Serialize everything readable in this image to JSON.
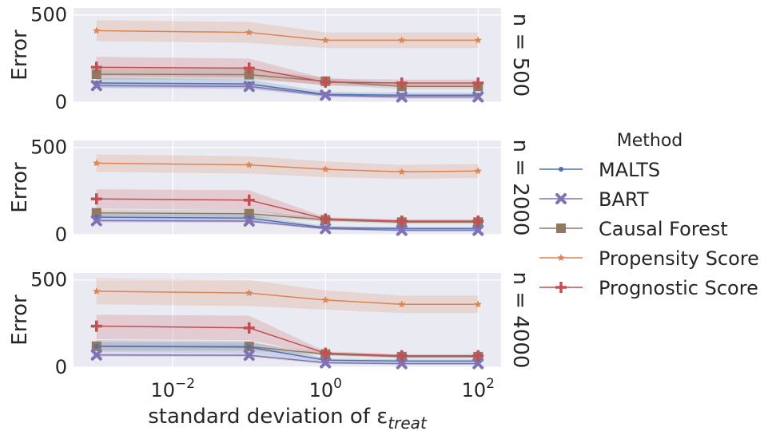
{
  "chart_data": {
    "type": "line",
    "x": [
      0.001,
      0.1,
      1,
      10,
      100
    ],
    "x_scale": "log",
    "xlim": [
      0.0005,
      200
    ],
    "xticks": [
      0.01,
      1,
      100
    ],
    "xlabel": "standard deviation of ε",
    "xlabel_subscript": "treat",
    "ylabel": "Error",
    "ylim": [
      0,
      540
    ],
    "yticks": [
      0,
      500
    ],
    "grid": true,
    "legend": {
      "title": "Method",
      "placement": "right",
      "entries": [
        {
          "name": "MALTS",
          "color": "#4c72b0",
          "marker": "dot"
        },
        {
          "name": "BART",
          "color": "#8172b3",
          "marker": "x"
        },
        {
          "name": "Causal Forest",
          "color": "#937860",
          "marker": "square"
        },
        {
          "name": "Propensity Score",
          "color": "#dd8452",
          "marker": "star"
        },
        {
          "name": "Prognostic Score",
          "color": "#c44e52",
          "marker": "plus"
        }
      ]
    },
    "panels": [
      {
        "label": "n = 500",
        "series": [
          {
            "name": "MALTS",
            "values": [
              110,
              105,
              45,
              40,
              40
            ],
            "band": [
              [
                85,
                140
              ],
              [
                80,
                130
              ],
              [
                30,
                60
              ],
              [
                25,
                55
              ],
              [
                25,
                55
              ]
            ]
          },
          {
            "name": "BART",
            "values": [
              95,
              90,
              40,
              30,
              30
            ],
            "band": [
              [
                80,
                110
              ],
              [
                75,
                105
              ],
              [
                30,
                50
              ],
              [
                20,
                40
              ],
              [
                20,
                40
              ]
            ]
          },
          {
            "name": "Causal Forest",
            "values": [
              160,
              158,
              120,
              90,
              90
            ],
            "band": [
              [
                130,
                190
              ],
              [
                130,
                190
              ],
              [
                100,
                140
              ],
              [
                75,
                105
              ],
              [
                75,
                105
              ]
            ]
          },
          {
            "name": "Propensity Score",
            "values": [
              410,
              400,
              355,
              355,
              355
            ],
            "band": [
              [
                350,
                470
              ],
              [
                340,
                460
              ],
              [
                310,
                400
              ],
              [
                310,
                400
              ],
              [
                310,
                400
              ]
            ]
          },
          {
            "name": "Prognostic Score",
            "values": [
              200,
              195,
              115,
              110,
              110
            ],
            "band": [
              [
                150,
                260
              ],
              [
                140,
                250
              ],
              [
                95,
                135
              ],
              [
                90,
                130
              ],
              [
                90,
                130
              ]
            ]
          }
        ]
      },
      {
        "label": "n = 2000",
        "series": [
          {
            "name": "MALTS",
            "values": [
              100,
              95,
              40,
              35,
              35
            ],
            "band": [
              [
                80,
                120
              ],
              [
                75,
                115
              ],
              [
                30,
                50
              ],
              [
                25,
                45
              ],
              [
                25,
                45
              ]
            ]
          },
          {
            "name": "BART",
            "values": [
              80,
              78,
              35,
              25,
              25
            ],
            "band": [
              [
                70,
                90
              ],
              [
                68,
                88
              ],
              [
                28,
                42
              ],
              [
                18,
                32
              ],
              [
                18,
                32
              ]
            ]
          },
          {
            "name": "Causal Forest",
            "values": [
              125,
              120,
              85,
              72,
              72
            ],
            "band": [
              [
                105,
                145
              ],
              [
                100,
                140
              ],
              [
                75,
                95
              ],
              [
                62,
                82
              ],
              [
                62,
                82
              ]
            ]
          },
          {
            "name": "Propensity Score",
            "values": [
              410,
              400,
              375,
              360,
              365
            ],
            "band": [
              [
                360,
                460
              ],
              [
                350,
                450
              ],
              [
                330,
                420
              ],
              [
                320,
                400
              ],
              [
                325,
                405
              ]
            ]
          },
          {
            "name": "Prognostic Score",
            "values": [
              205,
              198,
              90,
              78,
              78
            ],
            "band": [
              [
                150,
                260
              ],
              [
                140,
                255
              ],
              [
                80,
                100
              ],
              [
                68,
                88
              ],
              [
                68,
                88
              ]
            ]
          }
        ]
      },
      {
        "label": "n = 4000",
        "series": [
          {
            "name": "MALTS",
            "values": [
              120,
              115,
              40,
              35,
              35
            ],
            "band": [
              [
                85,
                155
              ],
              [
                80,
                150
              ],
              [
                30,
                50
              ],
              [
                25,
                45
              ],
              [
                25,
                45
              ]
            ]
          },
          {
            "name": "BART",
            "values": [
              70,
              68,
              25,
              20,
              20
            ],
            "band": [
              [
                60,
                80
              ],
              [
                58,
                78
              ],
              [
                18,
                32
              ],
              [
                14,
                26
              ],
              [
                14,
                26
              ]
            ]
          },
          {
            "name": "Causal Forest",
            "values": [
              120,
              118,
              75,
              60,
              60
            ],
            "band": [
              [
                95,
                145
              ],
              [
                95,
                140
              ],
              [
                65,
                85
              ],
              [
                52,
                68
              ],
              [
                52,
                68
              ]
            ]
          },
          {
            "name": "Propensity Score",
            "values": [
              435,
              425,
              385,
              360,
              360
            ],
            "band": [
              [
                360,
                510
              ],
              [
                350,
                500
              ],
              [
                330,
                440
              ],
              [
                310,
                410
              ],
              [
                310,
                410
              ]
            ]
          },
          {
            "name": "Prognostic Score",
            "values": [
              235,
              225,
              80,
              65,
              65
            ],
            "band": [
              [
                160,
                300
              ],
              [
                155,
                295
              ],
              [
                70,
                90
              ],
              [
                55,
                75
              ],
              [
                55,
                75
              ]
            ]
          }
        ]
      }
    ]
  }
}
